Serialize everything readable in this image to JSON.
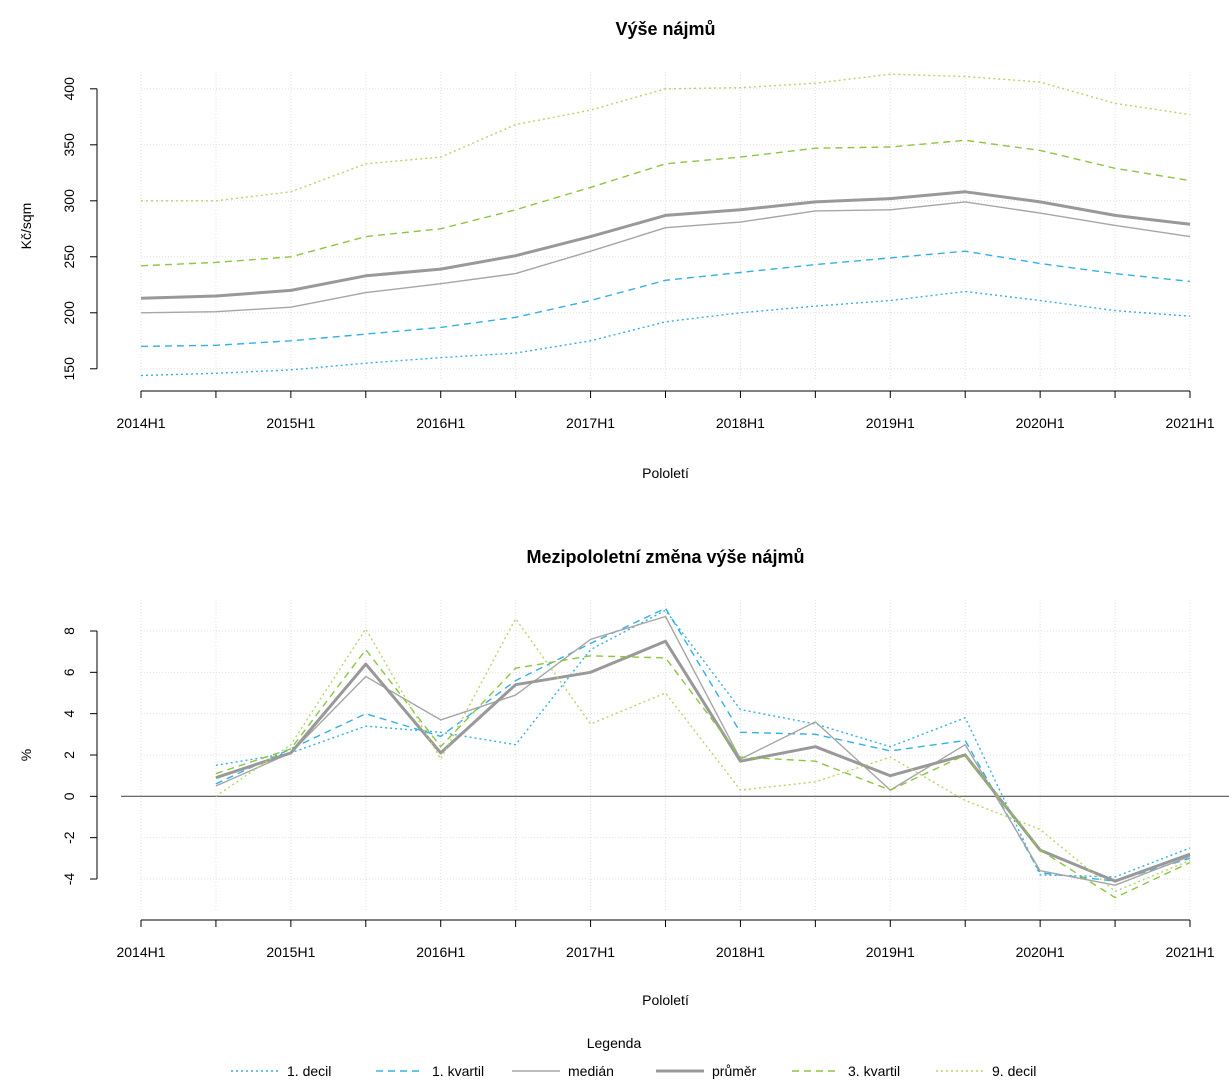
{
  "chart_data": [
    {
      "type": "line",
      "title": "Výše nájmů",
      "xlabel": "Pololetí",
      "ylabel": "Kč/sqm",
      "x": [
        "2014H1",
        "2014H2",
        "2015H1",
        "2015H2",
        "2016H1",
        "2016H2",
        "2017H1",
        "2017H2",
        "2018H1",
        "2018H2",
        "2019H1",
        "2019H2",
        "2020H1",
        "2020H2",
        "2021H1"
      ],
      "xticks": [
        "2014H1",
        "2015H1",
        "2016H1",
        "2017H1",
        "2018H1",
        "2019H1",
        "2020H1",
        "2021H1"
      ],
      "yticks": [
        150,
        200,
        250,
        300,
        350,
        400
      ],
      "ylim": [
        140,
        415
      ],
      "grid": true,
      "zero_line": false,
      "series": [
        {
          "name": "1. decil",
          "color": "#33b1e3",
          "dash": "dotted",
          "width": 1.4,
          "values": [
            144,
            146,
            149,
            155,
            160,
            164,
            175,
            192,
            200,
            206,
            211,
            219,
            211,
            202,
            197
          ]
        },
        {
          "name": "1. kvartil",
          "color": "#33b1e3",
          "dash": "dashed",
          "width": 1.4,
          "values": [
            170,
            171,
            175,
            181,
            187,
            196,
            211,
            229,
            236,
            243,
            249,
            255,
            244,
            235,
            228
          ]
        },
        {
          "name": "medián",
          "color": "#a6a6a6",
          "dash": "solid",
          "width": 1.4,
          "values": [
            200,
            201,
            205,
            218,
            226,
            235,
            255,
            276,
            281,
            291,
            292,
            299,
            289,
            278,
            268
          ]
        },
        {
          "name": "průměr",
          "color": "#999999",
          "dash": "solid",
          "width": 3,
          "values": [
            213,
            215,
            220,
            233,
            239,
            251,
            268,
            287,
            292,
            299,
            302,
            308,
            299,
            287,
            279
          ]
        },
        {
          "name": "3. kvartil",
          "color": "#8cc63f",
          "dash": "dashed",
          "width": 1.4,
          "values": [
            242,
            245,
            250,
            268,
            275,
            292,
            312,
            333,
            339,
            347,
            348,
            354,
            345,
            329,
            318
          ]
        },
        {
          "name": "9. decil",
          "color": "#b5d56a",
          "dash": "dotted",
          "width": 1.4,
          "values": [
            300,
            300,
            308,
            333,
            339,
            368,
            381,
            400,
            401,
            405,
            413,
            411,
            406,
            387,
            377
          ]
        }
      ]
    },
    {
      "type": "line",
      "title": "Mezipololetní změna výše nájmů",
      "xlabel": "Pololetí",
      "ylabel": "%",
      "x": [
        "2014H1",
        "2014H2",
        "2015H1",
        "2015H2",
        "2016H1",
        "2016H2",
        "2017H1",
        "2017H2",
        "2018H1",
        "2018H2",
        "2019H1",
        "2019H2",
        "2020H1",
        "2020H2",
        "2021H1"
      ],
      "xticks": [
        "2014H1",
        "2015H1",
        "2016H1",
        "2017H1",
        "2018H1",
        "2019H1",
        "2020H1",
        "2021H1"
      ],
      "yticks": [
        -4,
        -2,
        0,
        2,
        4,
        6,
        8
      ],
      "ylim": [
        -5.5,
        9.5
      ],
      "grid": true,
      "zero_line": true,
      "series": [
        {
          "name": "1. decil",
          "color": "#33b1e3",
          "dash": "dotted",
          "width": 1.4,
          "values": [
            null,
            1.5,
            2.1,
            3.4,
            3.1,
            2.5,
            7.1,
            9.0,
            4.2,
            3.5,
            2.4,
            3.8,
            -3.8,
            -3.9,
            -2.5
          ]
        },
        {
          "name": "1. kvartil",
          "color": "#33b1e3",
          "dash": "dashed",
          "width": 1.4,
          "values": [
            null,
            0.6,
            2.3,
            4.0,
            2.9,
            5.6,
            7.4,
            9.1,
            3.1,
            3.0,
            2.2,
            2.7,
            -3.7,
            -4.1,
            -3.0
          ]
        },
        {
          "name": "medián",
          "color": "#a6a6a6",
          "dash": "solid",
          "width": 1.4,
          "values": [
            null,
            0.5,
            2.1,
            5.8,
            3.7,
            4.9,
            7.6,
            8.7,
            1.8,
            3.6,
            0.3,
            2.5,
            -3.6,
            -4.3,
            -2.9
          ]
        },
        {
          "name": "průměr",
          "color": "#999999",
          "dash": "solid",
          "width": 3,
          "values": [
            null,
            0.9,
            2.1,
            6.4,
            2.1,
            5.4,
            6.0,
            7.5,
            1.7,
            2.4,
            1.0,
            2.0,
            -2.6,
            -4.1,
            -2.8
          ]
        },
        {
          "name": "3. kvartil",
          "color": "#8cc63f",
          "dash": "dashed",
          "width": 1.4,
          "values": [
            null,
            1.1,
            2.3,
            7.1,
            2.4,
            6.2,
            6.8,
            6.7,
            1.9,
            1.7,
            0.3,
            2.0,
            -2.6,
            -4.9,
            -3.2
          ]
        },
        {
          "name": "9. decil",
          "color": "#b5d56a",
          "dash": "dotted",
          "width": 1.4,
          "values": [
            null,
            0.0,
            2.5,
            8.1,
            1.8,
            8.6,
            3.5,
            5.0,
            0.3,
            0.7,
            1.9,
            -0.2,
            -1.6,
            -4.6,
            -3.1
          ]
        }
      ]
    }
  ],
  "legend": {
    "title": "Legenda",
    "placement": "bottom-center",
    "entries": [
      "1. decil",
      "1. kvartil",
      "medián",
      "průměr",
      "3. kvartil",
      "9. decil"
    ]
  }
}
